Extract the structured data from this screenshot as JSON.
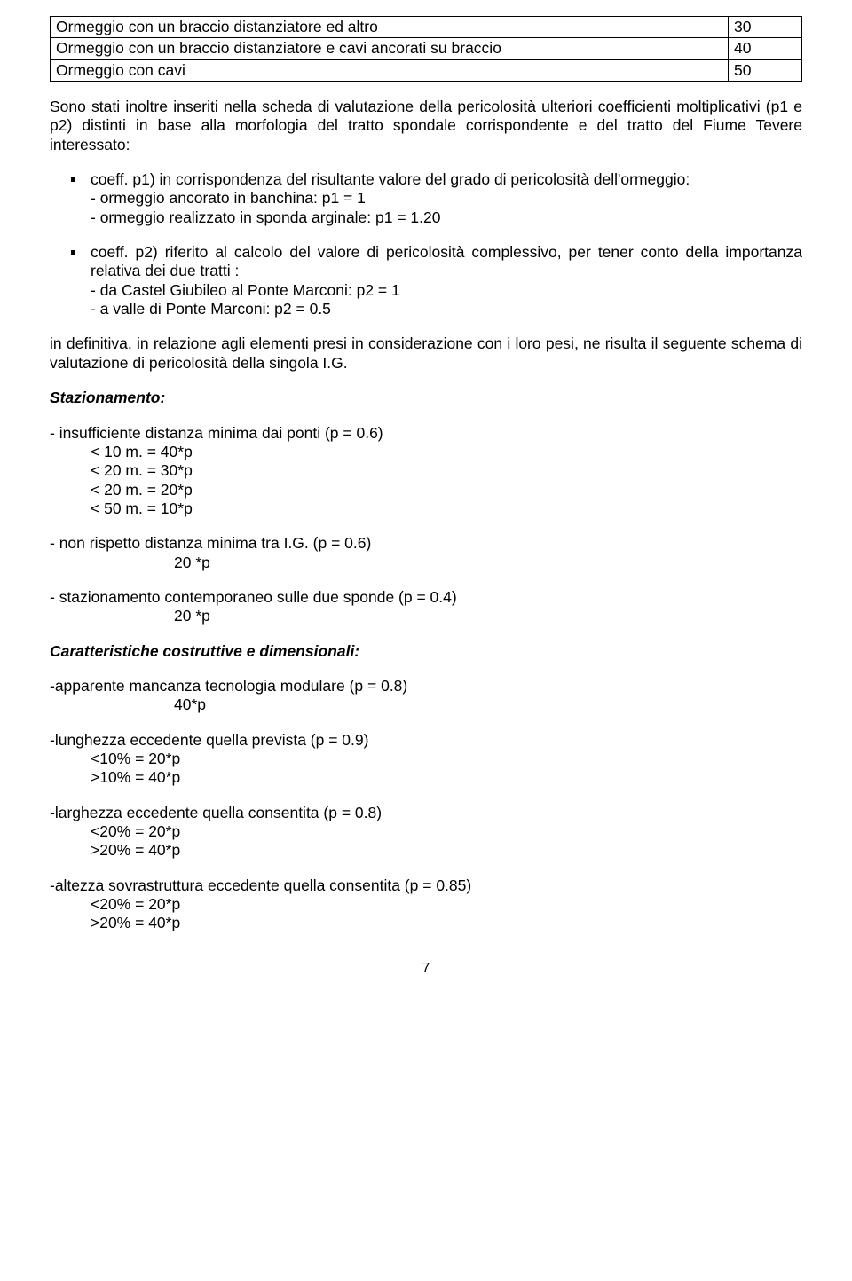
{
  "table": {
    "rows": [
      {
        "label": "Ormeggio con un braccio distanziatore ed altro",
        "value": "30"
      },
      {
        "label": "Ormeggio con un braccio distanziatore e cavi ancorati su braccio",
        "value": "40"
      },
      {
        "label": "Ormeggio con cavi",
        "value": "50"
      }
    ]
  },
  "intro_para": "Sono stati inoltre inseriti nella scheda di valutazione della pericolosità ulteriori coefficienti moltiplicativi (p1 e p2) distinti in base alla morfologia del tratto spondale corrispondente e del tratto del Fiume Tevere interessato:",
  "coeff_list": [
    {
      "lead": "coeff. p1) in corrispondenza del risultante valore del grado di pericolosità dell'ormeggio:",
      "subs": [
        "- ormeggio ancorato in banchina: p1 = 1",
        "- ormeggio realizzato in sponda arginale: p1 = 1.20"
      ]
    },
    {
      "lead": "coeff. p2) riferito al calcolo del valore di pericolosità complessivo, per tener conto della importanza relativa dei due tratti :",
      "subs": [
        "- da Castel Giubileo al Ponte Marconi: p2 = 1",
        "- a valle di Ponte Marconi: p2 = 0.5"
      ]
    }
  ],
  "conclusion_para": "in definitiva, in relazione agli elementi presi in considerazione con i loro pesi, ne risulta il seguente schema di valutazione di pericolosità della singola I.G.",
  "section_stazionamento": {
    "heading": "Stazionamento:",
    "items": [
      {
        "line": "- insufficiente distanza minima dai ponti (p = 0.6)",
        "rows": [
          "< 10 m. = 40*p",
          "< 20 m. = 30*p",
          "< 20 m. = 20*p",
          "< 50 m. = 10*p"
        ],
        "rows_indent": "indent1"
      },
      {
        "line": "- non rispetto distanza minima tra I.G.  (p = 0.6)",
        "rows": [
          "20 *p"
        ],
        "rows_indent": "indent2"
      },
      {
        "line": "- stazionamento contemporaneo sulle due sponde  (p = 0.4)",
        "rows": [
          "20 *p"
        ],
        "rows_indent": "indent2"
      }
    ]
  },
  "section_caratt": {
    "heading": "Caratteristiche costruttive e dimensionali:",
    "items": [
      {
        "line": "-apparente mancanza tecnologia modulare (p = 0.8)",
        "rows": [
          "40*p"
        ],
        "rows_indent": "indent2"
      },
      {
        "line": "-lunghezza  eccedente quella prevista (p = 0.9)",
        "rows": [
          "<10% = 20*p",
          ">10% = 40*p"
        ],
        "rows_indent": "indent1"
      },
      {
        "line": "-larghezza  eccedente quella consentita (p = 0.8)",
        "rows": [
          "<20% = 20*p",
          ">20% = 40*p"
        ],
        "rows_indent": "indent1"
      },
      {
        "line": "-altezza sovrastruttura eccedente quella consentita (p = 0.85)",
        "rows": [
          "<20% = 20*p",
          ">20% = 40*p"
        ],
        "rows_indent": "indent1"
      }
    ]
  },
  "page_number": "7"
}
